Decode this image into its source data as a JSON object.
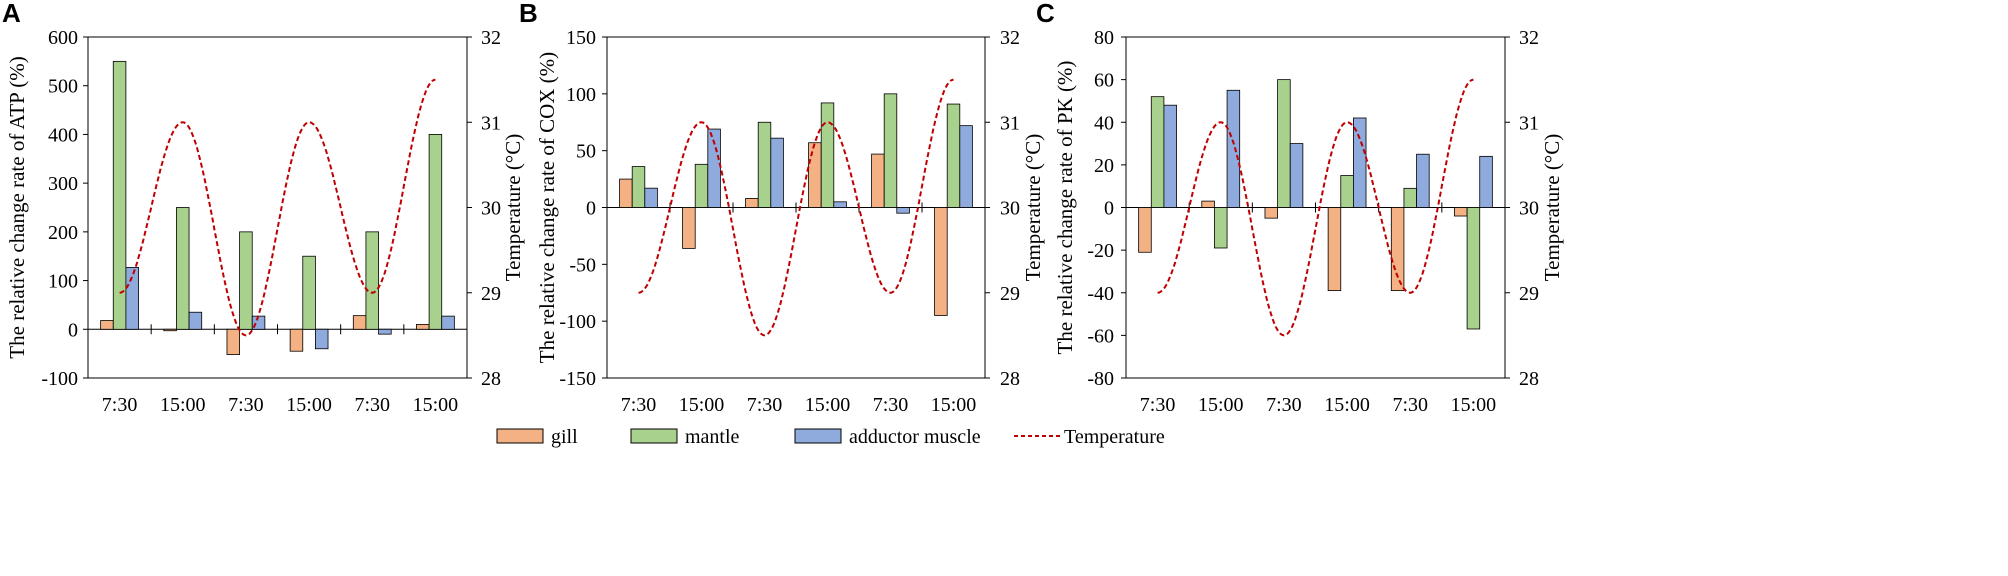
{
  "colors": {
    "gill": "#F4B183",
    "mantle": "#A9D18E",
    "adductor": "#8FAADC",
    "temperature": "#C00000",
    "stroke": "#000000"
  },
  "legend": {
    "gill": "gill",
    "mantle": "mantle",
    "adductor": "adductor muscle",
    "temperature": "Temperature"
  },
  "chart_data": [
    {
      "type": "bar",
      "panel": "A",
      "categories": [
        "7:30",
        "15:00",
        "7:30",
        "15:00",
        "7:30",
        "15:00"
      ],
      "ylabel": "The relative change rate of ATP (%)",
      "y2label": "Temperature (°C)",
      "ylim": [
        -100,
        600
      ],
      "yticks": [
        -100,
        0,
        100,
        200,
        300,
        400,
        500,
        600
      ],
      "y2lim": [
        28,
        32
      ],
      "y2ticks": [
        28,
        29,
        30,
        31,
        32
      ],
      "series": [
        {
          "name": "gill",
          "values": [
            18,
            -3,
            -52,
            -45,
            28,
            10
          ]
        },
        {
          "name": "mantle",
          "values": [
            550,
            250,
            200,
            150,
            200,
            400
          ]
        },
        {
          "name": "adductor muscle",
          "values": [
            127,
            35,
            27,
            -40,
            -10,
            27
          ]
        }
      ],
      "temperature": {
        "name": "Temperature",
        "start": 29.0,
        "peaks": [
          31.0,
          31.0
        ],
        "troughs": [
          28.5,
          29.0
        ],
        "end": 31.5
      }
    },
    {
      "type": "bar",
      "panel": "B",
      "categories": [
        "7:30",
        "15:00",
        "7:30",
        "15:00",
        "7:30",
        "15:00"
      ],
      "ylabel": "The relative change rate of COX (%)",
      "y2label": "Temperature (°C)",
      "ylim": [
        -150,
        150
      ],
      "yticks": [
        -150,
        -100,
        -50,
        0,
        50,
        100,
        150
      ],
      "y2lim": [
        28,
        32
      ],
      "y2ticks": [
        28,
        29,
        30,
        31,
        32
      ],
      "series": [
        {
          "name": "gill",
          "values": [
            25,
            -36,
            8,
            57,
            47,
            -95
          ]
        },
        {
          "name": "mantle",
          "values": [
            36,
            38,
            75,
            92,
            100,
            91
          ]
        },
        {
          "name": "adductor muscle",
          "values": [
            17,
            69,
            61,
            5,
            -5,
            72
          ]
        }
      ],
      "temperature": {
        "name": "Temperature",
        "start": 29.0,
        "peaks": [
          31.0,
          31.0
        ],
        "troughs": [
          28.5,
          29.0
        ],
        "end": 31.5
      }
    },
    {
      "type": "bar",
      "panel": "C",
      "categories": [
        "7:30",
        "15:00",
        "7:30",
        "15:00",
        "7:30",
        "15:00"
      ],
      "ylabel": "The relative change rate of PK (%)",
      "y2label": "Temperature (°C)",
      "ylim": [
        -80,
        80
      ],
      "yticks": [
        -80,
        -60,
        -40,
        -20,
        0,
        20,
        40,
        60,
        80
      ],
      "y2lim": [
        28,
        32
      ],
      "y2ticks": [
        28,
        29,
        30,
        31,
        32
      ],
      "series": [
        {
          "name": "gill",
          "values": [
            -21,
            3,
            -5,
            -39,
            -39,
            -4
          ]
        },
        {
          "name": "mantle",
          "values": [
            52,
            -19,
            60,
            15,
            9,
            -57
          ]
        },
        {
          "name": "adductor muscle",
          "values": [
            48,
            55,
            30,
            42,
            25,
            24
          ]
        }
      ],
      "temperature": {
        "name": "Temperature",
        "start": 29.0,
        "peaks": [
          31.0,
          31.0
        ],
        "troughs": [
          28.5,
          29.0
        ],
        "end": 31.5
      }
    }
  ]
}
